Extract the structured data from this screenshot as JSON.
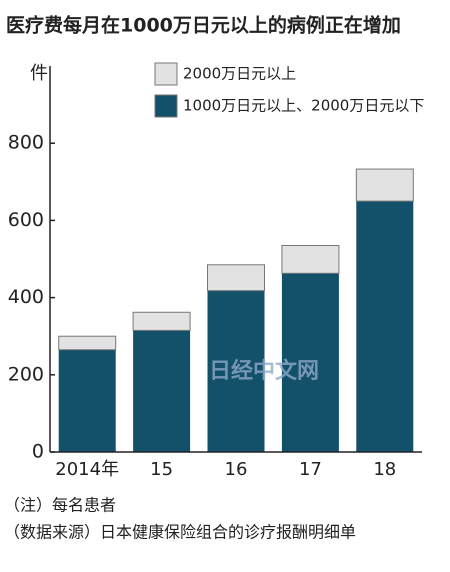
{
  "chart_data": {
    "type": "stacked_bar",
    "title": "医疗费每月在1000万日元以上的病例正在增加",
    "y_label": "件",
    "categories": [
      "2014年",
      "15",
      "16",
      "17",
      "18"
    ],
    "series": [
      {
        "name": "1000万日元以上、2000万日元以下",
        "color": "#13506a",
        "values": [
          265,
          315,
          418,
          463,
          650
        ]
      },
      {
        "name": "2000万日元以上",
        "color": "#e2e2e2",
        "values": [
          35,
          47,
          67,
          72,
          83
        ]
      }
    ],
    "ylim": [
      0,
      1000
    ],
    "yticks": [
      0,
      200,
      400,
      600,
      800
    ],
    "grid": false,
    "watermark": "日经中文网",
    "notes": [
      "（注）每名患者",
      "（数据来源）日本健康保险组合的诊疗报酬明细单"
    ]
  }
}
